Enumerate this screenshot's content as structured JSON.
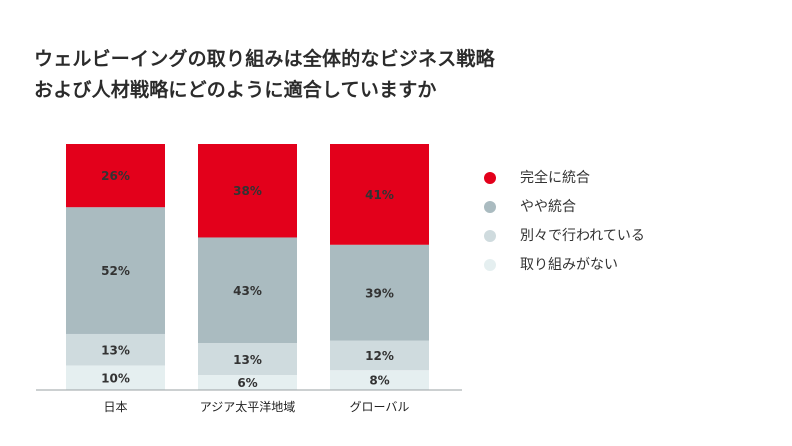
{
  "title_lines": [
    "ウェルビーイングの取り組みは全体的なビジネス戦略",
    "および人材戦略にどのように適合していますか"
  ],
  "chart_data": {
    "type": "bar",
    "stacked": true,
    "percent_stacked": true,
    "categories": [
      "日本",
      "アジア太平洋地域",
      "グローバル"
    ],
    "series": [
      {
        "name": "完全に統合",
        "color": "#e3001b",
        "values": [
          26,
          38,
          41
        ]
      },
      {
        "name": "やや統合",
        "color": "#aabbc0",
        "values": [
          52,
          43,
          39
        ]
      },
      {
        "name": "別々で行われている",
        "color": "#cfdbde",
        "values": [
          13,
          13,
          12
        ]
      },
      {
        "name": "取り組みがない",
        "color": "#e5eff0",
        "values": [
          10,
          6,
          8
        ]
      }
    ],
    "stack_order_top_to_bottom": [
      "完全に統合",
      "やや統合",
      "別々で行われている",
      "取り組みがない"
    ],
    "value_suffix": "%",
    "legend_position": "right",
    "grid": false
  }
}
